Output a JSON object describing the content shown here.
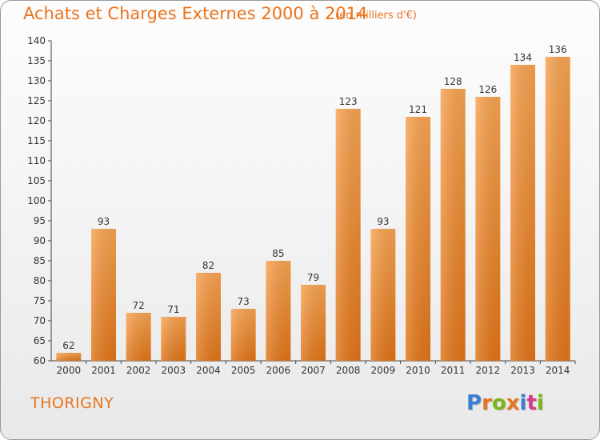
{
  "title": "Achats et Charges Externes 2000 à 2014",
  "unit_label": "(en milliers d'€)",
  "location": "THORIGNY",
  "logo": {
    "letters": [
      "P",
      "r",
      "o",
      "x",
      "i",
      "t",
      "i"
    ],
    "colors": [
      "#3a7fd5",
      "#e8741e",
      "#7ab51d",
      "#e8741e",
      "#3a7fd5",
      "#d93a8c",
      "#7ab51d"
    ]
  },
  "chart_data": {
    "type": "bar",
    "categories": [
      "2000",
      "2001",
      "2002",
      "2003",
      "2004",
      "2005",
      "2006",
      "2007",
      "2008",
      "2009",
      "2010",
      "2011",
      "2012",
      "2013",
      "2014"
    ],
    "values": [
      62,
      93,
      72,
      71,
      82,
      73,
      85,
      79,
      123,
      93,
      121,
      128,
      126,
      134,
      136
    ],
    "ylim": [
      60,
      140
    ],
    "yticks": [
      60,
      65,
      70,
      75,
      80,
      85,
      90,
      95,
      100,
      105,
      110,
      115,
      120,
      125,
      130,
      135,
      140
    ],
    "grid": false,
    "bar_color": "#f08a2c"
  }
}
